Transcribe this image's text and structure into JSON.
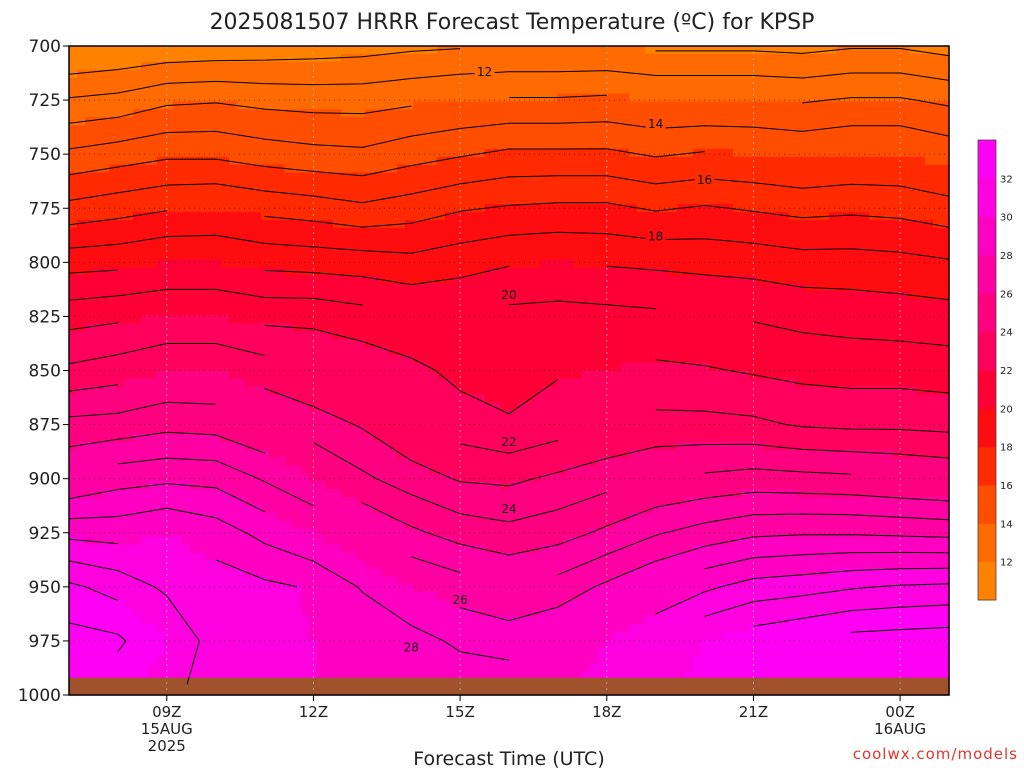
{
  "chart_data": {
    "type": "heatmap",
    "title": "2025081507 HRRR Forecast Temperature (ºC) for KPSP",
    "xlabel": "Forecast Time (UTC)",
    "ylabel": "",
    "credit": "coolwx.com/models",
    "x_hours": [
      7,
      8,
      9,
      10,
      11,
      12,
      13,
      14,
      15,
      16,
      17,
      18,
      19,
      20,
      21,
      22,
      23,
      24,
      25
    ],
    "y_pressure": [
      700,
      725,
      750,
      775,
      800,
      825,
      850,
      875,
      900,
      925,
      950,
      975,
      995
    ],
    "xlim": [
      7,
      25
    ],
    "ylim_pressure": [
      700,
      1000
    ],
    "y_scale": "pressure (inverted)",
    "x_ticks": [
      {
        "hour": 9,
        "label": "09Z",
        "date": "15AUG",
        "year": "2025"
      },
      {
        "hour": 12,
        "label": "12Z",
        "date": "",
        "year": ""
      },
      {
        "hour": 15,
        "label": "15Z",
        "date": "",
        "year": ""
      },
      {
        "hour": 18,
        "label": "18Z",
        "date": "",
        "year": ""
      },
      {
        "hour": 21,
        "label": "21Z",
        "date": "",
        "year": ""
      },
      {
        "hour": 24,
        "label": "00Z",
        "date": "16AUG",
        "year": ""
      }
    ],
    "y_ticks": [
      "700",
      "725",
      "750",
      "775",
      "800",
      "825",
      "850",
      "875",
      "900",
      "925",
      "950",
      "975",
      "1000"
    ],
    "temperature_grid": [
      [
        10.8,
        11.0,
        11.2,
        11.3,
        11.4,
        11.5,
        11.6,
        11.8,
        11.9,
        12.0,
        12.0,
        12.0,
        11.8,
        11.8,
        11.8,
        11.7,
        11.9,
        11.9,
        11.6
      ],
      [
        13.1,
        13.3,
        13.8,
        13.9,
        13.7,
        13.6,
        13.6,
        13.8,
        14.0,
        14.1,
        14.1,
        14.2,
        14.0,
        14.0,
        14.0,
        13.9,
        14.1,
        14.1,
        13.8
      ],
      [
        15.2,
        15.5,
        15.8,
        15.8,
        15.5,
        15.3,
        15.2,
        15.6,
        15.9,
        16.2,
        16.2,
        16.2,
        15.9,
        16.1,
        16.0,
        15.8,
        16.0,
        16.0,
        15.6
      ],
      [
        17.3,
        17.6,
        17.9,
        18.0,
        17.7,
        17.5,
        17.2,
        17.5,
        17.9,
        18.1,
        18.2,
        18.2,
        17.9,
        18.1,
        17.9,
        17.7,
        17.8,
        17.7,
        17.4
      ],
      [
        19.6,
        19.7,
        20.0,
        20.0,
        19.7,
        19.6,
        19.5,
        19.3,
        19.6,
        19.9,
        20.0,
        19.9,
        19.8,
        19.7,
        19.6,
        19.4,
        19.4,
        19.3,
        19.1
      ],
      [
        21.6,
        21.8,
        22.0,
        22.0,
        21.7,
        21.7,
        21.4,
        21.0,
        21.0,
        21.3,
        21.4,
        21.3,
        21.2,
        21.0,
        20.9,
        20.7,
        20.6,
        20.5,
        20.4
      ],
      [
        23.2,
        23.5,
        24.0,
        24.0,
        23.5,
        23.0,
        22.7,
        22.3,
        21.7,
        21.6,
        21.9,
        22.0,
        22.2,
        22.1,
        21.9,
        21.7,
        21.6,
        21.6,
        21.5
      ],
      [
        25.3,
        25.4,
        25.7,
        25.6,
        25.0,
        24.5,
        23.9,
        23.0,
        22.5,
        22.1,
        22.5,
        23.0,
        23.3,
        23.3,
        23.2,
        22.9,
        22.8,
        22.8,
        22.7
      ],
      [
        27.0,
        27.6,
        27.8,
        27.7,
        26.9,
        26.0,
        25.2,
        24.5,
        23.9,
        23.8,
        24.2,
        24.6,
        25.0,
        25.2,
        25.4,
        25.3,
        25.2,
        25.0,
        24.8
      ],
      [
        29.7,
        29.6,
        30.0,
        29.5,
        28.7,
        28.0,
        27.0,
        26.2,
        25.6,
        25.3,
        25.6,
        26.2,
        26.9,
        27.4,
        27.8,
        27.9,
        27.9,
        27.8,
        27.7
      ],
      [
        32.2,
        31.6,
        30.8,
        30.5,
        30.2,
        29.9,
        28.9,
        28.0,
        27.5,
        27.0,
        27.4,
        28.2,
        29.0,
        29.8,
        30.4,
        30.6,
        30.9,
        31.1,
        31.2
      ],
      [
        33.4,
        33.2,
        32.0,
        30.5,
        30.2,
        30.0,
        29.9,
        29.4,
        28.8,
        28.6,
        29.0,
        30.0,
        31.0,
        32.0,
        32.6,
        33.0,
        33.4,
        33.5,
        33.6
      ],
      [
        33.0,
        32.4,
        31.5,
        30.3,
        30.0,
        30.0,
        30.0,
        29.9,
        29.6,
        29.5,
        29.8,
        30.5,
        31.5,
        32.4,
        33.0,
        33.4,
        33.6,
        33.8,
        33.9
      ]
    ],
    "contour_levels": [
      12,
      13,
      14,
      15,
      16,
      17,
      18,
      19,
      20,
      21,
      22,
      23,
      24,
      25,
      26,
      27,
      28,
      29,
      30,
      31,
      32,
      33
    ],
    "contour_labels": [
      {
        "level": 12,
        "text": "12",
        "hour": 15.5,
        "pressure": 712
      },
      {
        "level": 14,
        "text": "14",
        "hour": 19.0,
        "pressure": 736
      },
      {
        "level": 16,
        "text": "16",
        "hour": 20.0,
        "pressure": 762
      },
      {
        "level": 18,
        "text": "18",
        "hour": 19.0,
        "pressure": 788
      },
      {
        "level": 20,
        "text": "20",
        "hour": 16.0,
        "pressure": 815
      },
      {
        "level": 22,
        "text": "22",
        "hour": 16.0,
        "pressure": 883
      },
      {
        "level": 24,
        "text": "24",
        "hour": 16.0,
        "pressure": 914
      },
      {
        "level": 26,
        "text": "26",
        "hour": 15.0,
        "pressure": 956
      },
      {
        "level": 28,
        "text": "28",
        "hour": 14.0,
        "pressure": 978
      }
    ],
    "colorbar": {
      "labels": [
        "12",
        "14",
        "16",
        "18",
        "20",
        "22",
        "24",
        "26",
        "28",
        "30",
        "32"
      ],
      "min": 10,
      "max": 34,
      "step": 2
    },
    "colors": {
      "ground": "#a0522d",
      "grid": "#b0b0b0",
      "contour": "#000000",
      "credit": "#e0362e"
    },
    "terrain_pressure": 992,
    "grid": true
  }
}
